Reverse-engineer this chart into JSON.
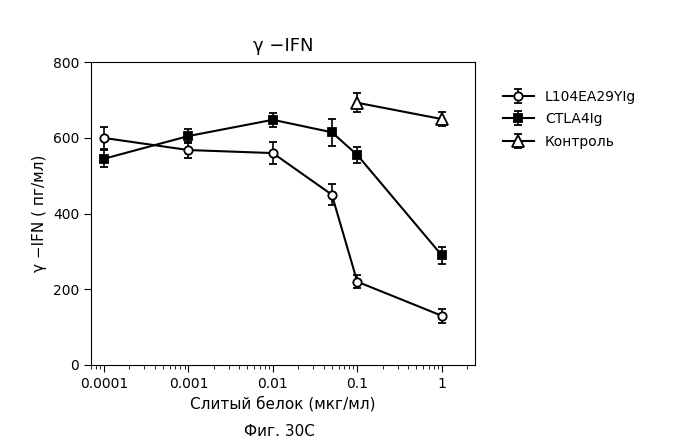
{
  "title": "γ −IFN",
  "xlabel": "Слитый белок (мкг/мл)",
  "ylabel": "γ −IFN ( пг/мл)",
  "caption": "Фиг. 30C",
  "ylim": [
    0,
    800
  ],
  "yticks": [
    0,
    200,
    400,
    600,
    800
  ],
  "xlim_left": 7e-05,
  "xlim_right": 2.5,
  "series": [
    {
      "label": "L104EA29YIg",
      "x": [
        0.0001,
        0.001,
        0.01,
        0.05,
        0.1,
        1.0
      ],
      "y": [
        600,
        568,
        560,
        450,
        220,
        130
      ],
      "yerr": [
        28,
        22,
        28,
        28,
        18,
        18
      ],
      "marker": "o",
      "markerfacecolor": "white",
      "markeredgecolor": "black",
      "color": "black",
      "linestyle": "-",
      "markersize": 6
    },
    {
      "label": "CTLA4Ig",
      "x": [
        0.0001,
        0.001,
        0.01,
        0.05,
        0.1,
        1.0
      ],
      "y": [
        545,
        605,
        648,
        615,
        555,
        290
      ],
      "yerr": [
        22,
        18,
        18,
        35,
        22,
        22
      ],
      "marker": "s",
      "markerfacecolor": "black",
      "markeredgecolor": "black",
      "color": "black",
      "linestyle": "-",
      "markersize": 6
    },
    {
      "label": "Контроль",
      "x": [
        0.1,
        1.0
      ],
      "y": [
        693,
        650
      ],
      "yerr": [
        25,
        18
      ],
      "marker": "^",
      "markerfacecolor": "white",
      "markeredgecolor": "black",
      "color": "black",
      "linestyle": "-",
      "markersize": 8
    }
  ],
  "background_color": "white",
  "title_fontsize": 13,
  "xlabel_fontsize": 11,
  "ylabel_fontsize": 11,
  "tick_fontsize": 10,
  "legend_fontsize": 10,
  "caption_fontsize": 11
}
